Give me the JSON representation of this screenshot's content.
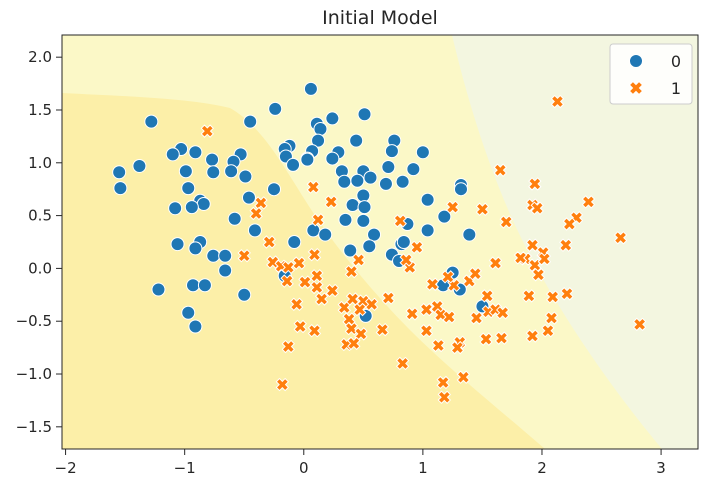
{
  "chart_data": {
    "type": "scatter",
    "title": "Initial Model",
    "xlabel": "",
    "ylabel": "",
    "xlim": [
      -2.03,
      3.31
    ],
    "ylim": [
      -1.71,
      2.21
    ],
    "xticks": [
      -2,
      -1,
      0,
      1,
      2,
      3
    ],
    "yticks": [
      2.0,
      1.5,
      1.0,
      0.5,
      0.0,
      -0.5,
      -1.0,
      -1.5
    ],
    "grid": false,
    "legend": "top-right",
    "background": "decision regions of the model (three shaded bands)",
    "region_colors": [
      "#fcefa8",
      "#fbf8c7",
      "#f3f6e0"
    ],
    "series": [
      {
        "name": "0",
        "marker": "circle",
        "color": "#1f77b4",
        "points": [
          [
            0.06,
            1.7
          ],
          [
            -0.24,
            1.51
          ],
          [
            0.51,
            1.46
          ],
          [
            -1.28,
            1.39
          ],
          [
            -0.45,
            1.39
          ],
          [
            0.24,
            1.42
          ],
          [
            0.11,
            1.37
          ],
          [
            0.14,
            1.32
          ],
          [
            0.12,
            1.21
          ],
          [
            0.44,
            1.21
          ],
          [
            -0.12,
            1.16
          ],
          [
            -0.16,
            1.13
          ],
          [
            0.07,
            1.11
          ],
          [
            0.29,
            1.1
          ],
          [
            -1.03,
            1.13
          ],
          [
            -1.1,
            1.08
          ],
          [
            -0.91,
            1.1
          ],
          [
            -0.77,
            1.03
          ],
          [
            -0.53,
            1.08
          ],
          [
            -0.59,
            1.01
          ],
          [
            -0.15,
            1.06
          ],
          [
            0.03,
            1.04
          ],
          [
            0.24,
            1.04
          ],
          [
            -0.09,
            0.98
          ],
          [
            -1.38,
            0.97
          ],
          [
            -1.55,
            0.91
          ],
          [
            -0.99,
            0.92
          ],
          [
            -0.76,
            0.91
          ],
          [
            -0.61,
            0.92
          ],
          [
            -0.49,
            0.87
          ],
          [
            0.32,
            0.92
          ],
          [
            0.5,
            0.92
          ],
          [
            0.34,
            0.82
          ],
          [
            0.45,
            0.83
          ],
          [
            0.56,
            0.86
          ],
          [
            -1.54,
            0.76
          ],
          [
            -0.97,
            0.76
          ],
          [
            -0.25,
            0.75
          ],
          [
            -0.46,
            0.67
          ],
          [
            -0.87,
            0.64
          ],
          [
            -0.84,
            0.61
          ],
          [
            -1.08,
            0.57
          ],
          [
            -0.94,
            0.58
          ],
          [
            0.5,
            0.69
          ],
          [
            0.41,
            0.6
          ],
          [
            0.51,
            0.58
          ],
          [
            -0.58,
            0.47
          ],
          [
            0.35,
            0.46
          ],
          [
            0.5,
            0.45
          ],
          [
            -0.41,
            0.36
          ],
          [
            0.08,
            0.36
          ],
          [
            0.18,
            0.32
          ],
          [
            0.59,
            0.32
          ],
          [
            -1.06,
            0.23
          ],
          [
            -0.87,
            0.25
          ],
          [
            -0.91,
            0.19
          ],
          [
            -0.76,
            0.12
          ],
          [
            -0.66,
            0.12
          ],
          [
            -0.08,
            0.25
          ],
          [
            0.39,
            0.17
          ],
          [
            0.55,
            0.21
          ],
          [
            -0.66,
            -0.02
          ],
          [
            -0.16,
            -0.07
          ],
          [
            -1.22,
            -0.2
          ],
          [
            -0.93,
            -0.16
          ],
          [
            -0.83,
            -0.16
          ],
          [
            -0.5,
            -0.25
          ],
          [
            -0.97,
            -0.42
          ],
          [
            -0.91,
            -0.55
          ],
          [
            0.52,
            -0.45
          ],
          [
            0.76,
            1.21
          ],
          [
            0.74,
            1.11
          ],
          [
            1.0,
            1.1
          ],
          [
            0.03,
            1.03
          ],
          [
            0.71,
            0.96
          ],
          [
            0.92,
            0.94
          ],
          [
            0.69,
            0.8
          ],
          [
            0.83,
            0.82
          ],
          [
            1.32,
            0.79
          ],
          [
            1.32,
            0.75
          ],
          [
            1.04,
            0.65
          ],
          [
            1.18,
            0.49
          ],
          [
            0.87,
            0.42
          ],
          [
            1.04,
            0.36
          ],
          [
            1.39,
            0.32
          ],
          [
            0.82,
            0.23
          ],
          [
            0.84,
            0.25
          ],
          [
            0.74,
            0.13
          ],
          [
            0.8,
            0.07
          ],
          [
            1.25,
            -0.04
          ],
          [
            1.17,
            -0.16
          ],
          [
            1.31,
            -0.2
          ],
          [
            1.5,
            -0.36
          ]
        ]
      },
      {
        "name": "1",
        "marker": "x",
        "color": "#ff7f0e",
        "points": [
          [
            -0.81,
            1.3
          ],
          [
            0.08,
            0.77
          ],
          [
            0.23,
            0.63
          ],
          [
            -0.36,
            0.62
          ],
          [
            -0.4,
            0.52
          ],
          [
            0.12,
            0.46
          ],
          [
            -0.29,
            0.25
          ],
          [
            -0.5,
            0.12
          ],
          [
            -0.26,
            0.06
          ],
          [
            -0.19,
            0.02
          ],
          [
            -0.13,
            0.01
          ],
          [
            -0.04,
            0.05
          ],
          [
            0.09,
            0.13
          ],
          [
            -0.14,
            -0.12
          ],
          [
            0.01,
            -0.13
          ],
          [
            0.11,
            -0.07
          ],
          [
            0.11,
            -0.18
          ],
          [
            0.24,
            -0.21
          ],
          [
            0.15,
            -0.29
          ],
          [
            -0.06,
            -0.34
          ],
          [
            -0.03,
            -0.55
          ],
          [
            0.09,
            -0.59
          ],
          [
            -0.13,
            -0.74
          ],
          [
            -0.18,
            -1.1
          ],
          [
            0.34,
            -0.37
          ],
          [
            0.41,
            -0.29
          ],
          [
            0.5,
            -0.31
          ],
          [
            0.57,
            -0.34
          ],
          [
            0.47,
            -0.39
          ],
          [
            0.38,
            -0.48
          ],
          [
            0.4,
            -0.57
          ],
          [
            0.48,
            -0.62
          ],
          [
            0.36,
            -0.72
          ],
          [
            0.42,
            -0.71
          ],
          [
            0.66,
            -0.58
          ],
          [
            0.71,
            -0.28
          ],
          [
            0.4,
            -0.03
          ],
          [
            0.46,
            0.08
          ],
          [
            0.89,
            0.01
          ],
          [
            0.86,
            0.08
          ],
          [
            0.95,
            0.2
          ],
          [
            1.08,
            -0.15
          ],
          [
            1.26,
            -0.16
          ],
          [
            1.21,
            -0.08
          ],
          [
            1.39,
            -0.12
          ],
          [
            1.44,
            -0.05
          ],
          [
            1.61,
            0.05
          ],
          [
            1.03,
            -0.39
          ],
          [
            1.12,
            -0.36
          ],
          [
            1.15,
            -0.44
          ],
          [
            1.22,
            -0.46
          ],
          [
            0.91,
            -0.43
          ],
          [
            1.03,
            -0.59
          ],
          [
            1.13,
            -0.73
          ],
          [
            1.31,
            -0.7
          ],
          [
            1.29,
            -0.75
          ],
          [
            1.54,
            -0.26
          ],
          [
            1.45,
            -0.47
          ],
          [
            1.55,
            -0.41
          ],
          [
            1.61,
            -0.39
          ],
          [
            1.67,
            -0.42
          ],
          [
            1.53,
            -0.67
          ],
          [
            1.66,
            -0.66
          ],
          [
            0.83,
            -0.9
          ],
          [
            1.17,
            -1.08
          ],
          [
            1.18,
            -1.22
          ],
          [
            1.34,
            -1.03
          ],
          [
            1.89,
            -0.26
          ],
          [
            2.09,
            -0.27
          ],
          [
            2.21,
            -0.24
          ],
          [
            2.08,
            -0.47
          ],
          [
            2.05,
            -0.59
          ],
          [
            1.92,
            -0.64
          ],
          [
            1.92,
            0.22
          ],
          [
            1.86,
            0.09
          ],
          [
            1.94,
            0.03
          ],
          [
            2.01,
            0.15
          ],
          [
            2.02,
            0.09
          ],
          [
            1.97,
            -0.06
          ],
          [
            2.2,
            0.22
          ],
          [
            2.66,
            0.29
          ],
          [
            2.82,
            -0.53
          ],
          [
            1.82,
            0.1
          ],
          [
            2.13,
            1.58
          ],
          [
            1.65,
            0.93
          ],
          [
            1.94,
            0.8
          ],
          [
            1.92,
            0.6
          ],
          [
            1.96,
            0.57
          ],
          [
            2.39,
            0.63
          ],
          [
            2.29,
            0.48
          ],
          [
            2.23,
            0.42
          ],
          [
            1.5,
            0.56
          ],
          [
            1.7,
            0.44
          ],
          [
            1.25,
            0.58
          ],
          [
            0.81,
            0.45
          ]
        ]
      }
    ]
  }
}
